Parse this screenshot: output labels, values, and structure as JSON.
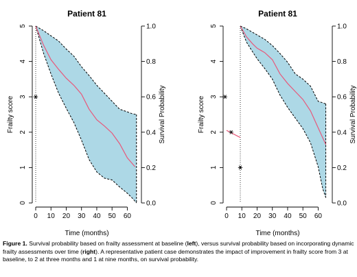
{
  "chart_data": [
    {
      "type": "area",
      "title": "Patient 81",
      "xlabel": "Time (months)",
      "ylabel_left": "Frailty score",
      "ylabel_right": "Survival Probability",
      "xlim": [
        0,
        67
      ],
      "ylim_left": [
        0,
        5
      ],
      "ylim_right": [
        0,
        1
      ],
      "x_ticks": [
        0,
        10,
        20,
        30,
        40,
        50,
        60
      ],
      "y_ticks_left": [
        0,
        1,
        2,
        3,
        4,
        5
      ],
      "y_ticks_right": [
        "0.0",
        "0.2",
        "0.4",
        "0.6",
        "0.8",
        "1.0"
      ],
      "colors": {
        "band": "#add8e6",
        "median": "#e8587a",
        "bounds": "#000000"
      },
      "survival_median": {
        "x": [
          0,
          5,
          10,
          15,
          20,
          25,
          30,
          35,
          40,
          45,
          50,
          55,
          60,
          65
        ],
        "y": [
          1.0,
          0.895,
          0.81,
          0.755,
          0.705,
          0.665,
          0.615,
          0.53,
          0.47,
          0.435,
          0.395,
          0.335,
          0.255,
          0.205
        ]
      },
      "survival_upper": {
        "x": [
          0,
          5,
          10,
          15,
          20,
          25,
          30,
          35,
          40,
          45,
          50,
          55,
          60,
          63,
          66
        ],
        "y": [
          1.0,
          0.975,
          0.945,
          0.915,
          0.87,
          0.83,
          0.77,
          0.72,
          0.665,
          0.62,
          0.575,
          0.53,
          0.515,
          0.505,
          0.5
        ]
      },
      "survival_lower": {
        "x": [
          0,
          5,
          10,
          15,
          20,
          25,
          30,
          35,
          40,
          45,
          50,
          55,
          60,
          63,
          66
        ],
        "y": [
          1.0,
          0.85,
          0.73,
          0.62,
          0.535,
          0.455,
          0.355,
          0.245,
          0.175,
          0.14,
          0.13,
          0.09,
          0.055,
          0.03,
          0.0
        ]
      },
      "frailty_points": [
        {
          "x": 0,
          "y": 3
        }
      ],
      "frailty_segment": null,
      "reference_line_x": 0
    },
    {
      "type": "area",
      "title": "Patient 81",
      "xlabel": "Time (months)",
      "ylabel_left": "Frailty score",
      "ylabel_right": "Survival Probability",
      "xlim": [
        0,
        67
      ],
      "ylim_left": [
        0,
        5
      ],
      "ylim_right": [
        0,
        1
      ],
      "x_ticks": [
        0,
        10,
        20,
        30,
        40,
        50,
        60
      ],
      "y_ticks_left": [
        0,
        1,
        2,
        3,
        4,
        5
      ],
      "y_ticks_right": [
        "0.0",
        "0.2",
        "0.4",
        "0.6",
        "0.8",
        "1.0"
      ],
      "colors": {
        "band": "#add8e6",
        "median": "#e8587a",
        "bounds": "#000000"
      },
      "survival_median": {
        "x": [
          9,
          13,
          17,
          20,
          25,
          30,
          35,
          40,
          45,
          50,
          55,
          60,
          65
        ],
        "y": [
          1.0,
          0.94,
          0.9,
          0.875,
          0.85,
          0.81,
          0.73,
          0.675,
          0.63,
          0.585,
          0.52,
          0.425,
          0.33
        ]
      },
      "survival_upper": {
        "x": [
          9,
          13,
          17,
          20,
          25,
          30,
          35,
          40,
          45,
          50,
          55,
          60,
          65
        ],
        "y": [
          1.0,
          0.985,
          0.965,
          0.95,
          0.925,
          0.89,
          0.845,
          0.795,
          0.73,
          0.7,
          0.66,
          0.575,
          0.56
        ]
      },
      "survival_lower": {
        "x": [
          9,
          13,
          17,
          20,
          25,
          30,
          35,
          40,
          45,
          50,
          55,
          60,
          63,
          65
        ],
        "y": [
          1.0,
          0.91,
          0.855,
          0.815,
          0.76,
          0.7,
          0.61,
          0.54,
          0.48,
          0.42,
          0.34,
          0.205,
          0.08,
          0.03
        ]
      },
      "frailty_points": [
        {
          "x": -1,
          "y": 3
        },
        {
          "x": 3,
          "y": 2
        },
        {
          "x": 9,
          "y": 1
        }
      ],
      "frailty_segment": {
        "x": [
          0,
          9
        ],
        "y": [
          2.05,
          1.85
        ]
      },
      "reference_line_x": 9
    }
  ],
  "caption": {
    "figure_label": "Figure 1.",
    "part1": " Survival probability based on frailty assessment at baseline (",
    "left": "left",
    "part2": "), versus survival probability based on incorporating dynamic frailty assessments over time (",
    "right": "right",
    "part3": "). A representative patient case demonstrates the impact of improvement in frailty score from 3 at baseline, to 2 at three months and 1 at nine months, on survival probability."
  }
}
